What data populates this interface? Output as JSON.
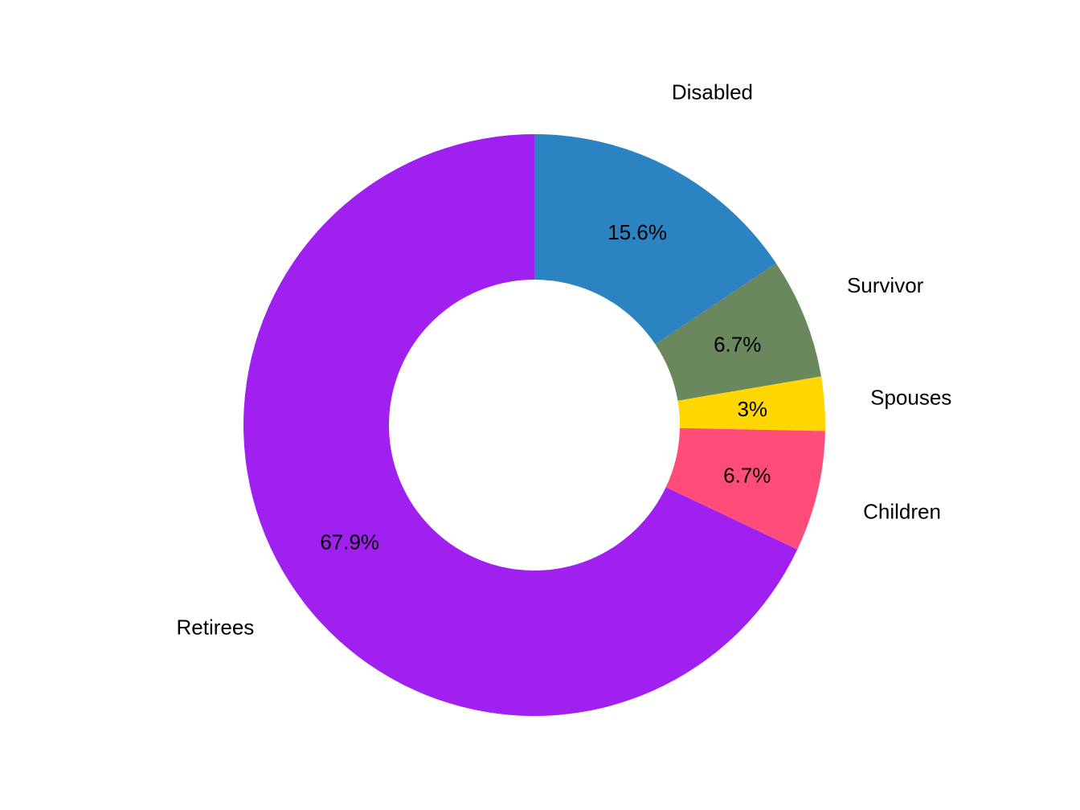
{
  "chart_data": {
    "type": "pie",
    "variant": "donut",
    "legend": "none",
    "grid": false,
    "start_angle_deg": 0,
    "direction": "clockwise",
    "slices": [
      {
        "label": "Disabled",
        "value": 15.6,
        "display": "15.6%",
        "color": "#2B83C2"
      },
      {
        "label": "Survivor",
        "value": 6.7,
        "display": "6.7%",
        "color": "#6B875E"
      },
      {
        "label": "Spouses",
        "value": 3.0,
        "display": "3%",
        "color": "#FFD700"
      },
      {
        "label": "Children",
        "value": 6.7,
        "display": "6.7%",
        "color": "#FF4C78"
      },
      {
        "label": "Retirees",
        "value": 67.9,
        "display": "67.9%",
        "color": "#A020F0"
      }
    ]
  }
}
